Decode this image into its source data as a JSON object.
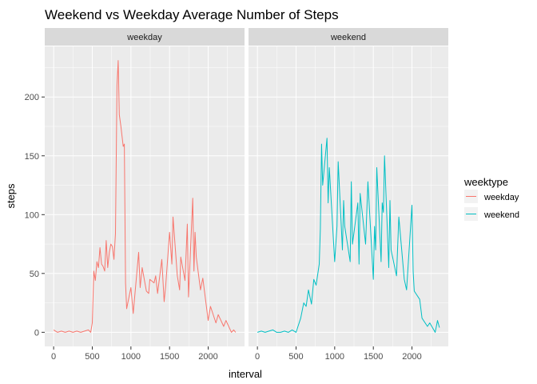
{
  "chart_data": {
    "type": "line",
    "title": "Weekend vs Weekday Average Number of Steps",
    "xlabel": "interval",
    "ylabel": "steps",
    "xlim": [
      -115,
      2470
    ],
    "ylim": [
      -12,
      243
    ],
    "x_ticks": [
      0,
      500,
      1000,
      1500,
      2000
    ],
    "y_ticks": [
      0,
      50,
      100,
      150,
      200
    ],
    "grid": true,
    "facet_variable": "weektype",
    "legend": {
      "title": "weektype",
      "placement": "right",
      "entries": [
        "weekday",
        "weekend"
      ]
    },
    "colors": {
      "weekday": "#F8766D",
      "weekend": "#00BFC4"
    },
    "series": [
      {
        "name": "weekday",
        "x": [
          0,
          50,
          100,
          150,
          200,
          250,
          300,
          350,
          400,
          450,
          480,
          500,
          520,
          540,
          560,
          580,
          600,
          620,
          640,
          660,
          680,
          700,
          720,
          740,
          760,
          780,
          800,
          820,
          835,
          850,
          870,
          900,
          915,
          930,
          945,
          1000,
          1030,
          1100,
          1120,
          1145,
          1200,
          1230,
          1245,
          1300,
          1320,
          1345,
          1400,
          1430,
          1450,
          1500,
          1530,
          1545,
          1600,
          1630,
          1645,
          1700,
          1730,
          1745,
          1800,
          1815,
          1830,
          1845,
          1900,
          1930,
          2000,
          2030,
          2100,
          2130,
          2200,
          2230,
          2300,
          2330,
          2355
        ],
        "values": [
          2,
          0,
          1,
          0,
          1,
          0,
          1,
          0,
          1,
          2,
          0,
          8,
          52,
          44,
          60,
          55,
          72,
          58,
          56,
          52,
          78,
          55,
          68,
          75,
          73,
          62,
          84,
          210,
          231,
          185,
          175,
          158,
          160,
          42,
          20,
          38,
          16,
          68,
          38,
          55,
          35,
          33,
          45,
          42,
          48,
          33,
          62,
          26,
          40,
          85,
          58,
          98,
          48,
          36,
          64,
          44,
          92,
          30,
          114,
          52,
          85,
          64,
          36,
          46,
          10,
          22,
          8,
          15,
          5,
          10,
          0,
          2,
          0
        ]
      },
      {
        "name": "weekend",
        "x": [
          0,
          50,
          100,
          150,
          200,
          250,
          300,
          350,
          400,
          450,
          500,
          530,
          560,
          600,
          630,
          660,
          700,
          730,
          760,
          800,
          815,
          830,
          845,
          900,
          915,
          930,
          1000,
          1030,
          1045,
          1100,
          1115,
          1130,
          1200,
          1215,
          1230,
          1300,
          1315,
          1330,
          1400,
          1430,
          1500,
          1515,
          1530,
          1545,
          1600,
          1615,
          1630,
          1645,
          1700,
          1715,
          1730,
          1800,
          1830,
          1900,
          1930,
          2000,
          2015,
          2030,
          2100,
          2130,
          2200,
          2230,
          2300,
          2330,
          2355
        ],
        "values": [
          0,
          1,
          0,
          1,
          2,
          0,
          0,
          1,
          0,
          2,
          0,
          6,
          12,
          25,
          22,
          36,
          24,
          45,
          40,
          58,
          88,
          160,
          125,
          165,
          110,
          140,
          60,
          90,
          145,
          70,
          112,
          90,
          60,
          128,
          75,
          110,
          58,
          118,
          75,
          128,
          45,
          90,
          70,
          140,
          60,
          110,
          102,
          150,
          55,
          112,
          70,
          48,
          98,
          45,
          36,
          108,
          52,
          35,
          28,
          12,
          5,
          8,
          0,
          10,
          4
        ]
      }
    ]
  }
}
